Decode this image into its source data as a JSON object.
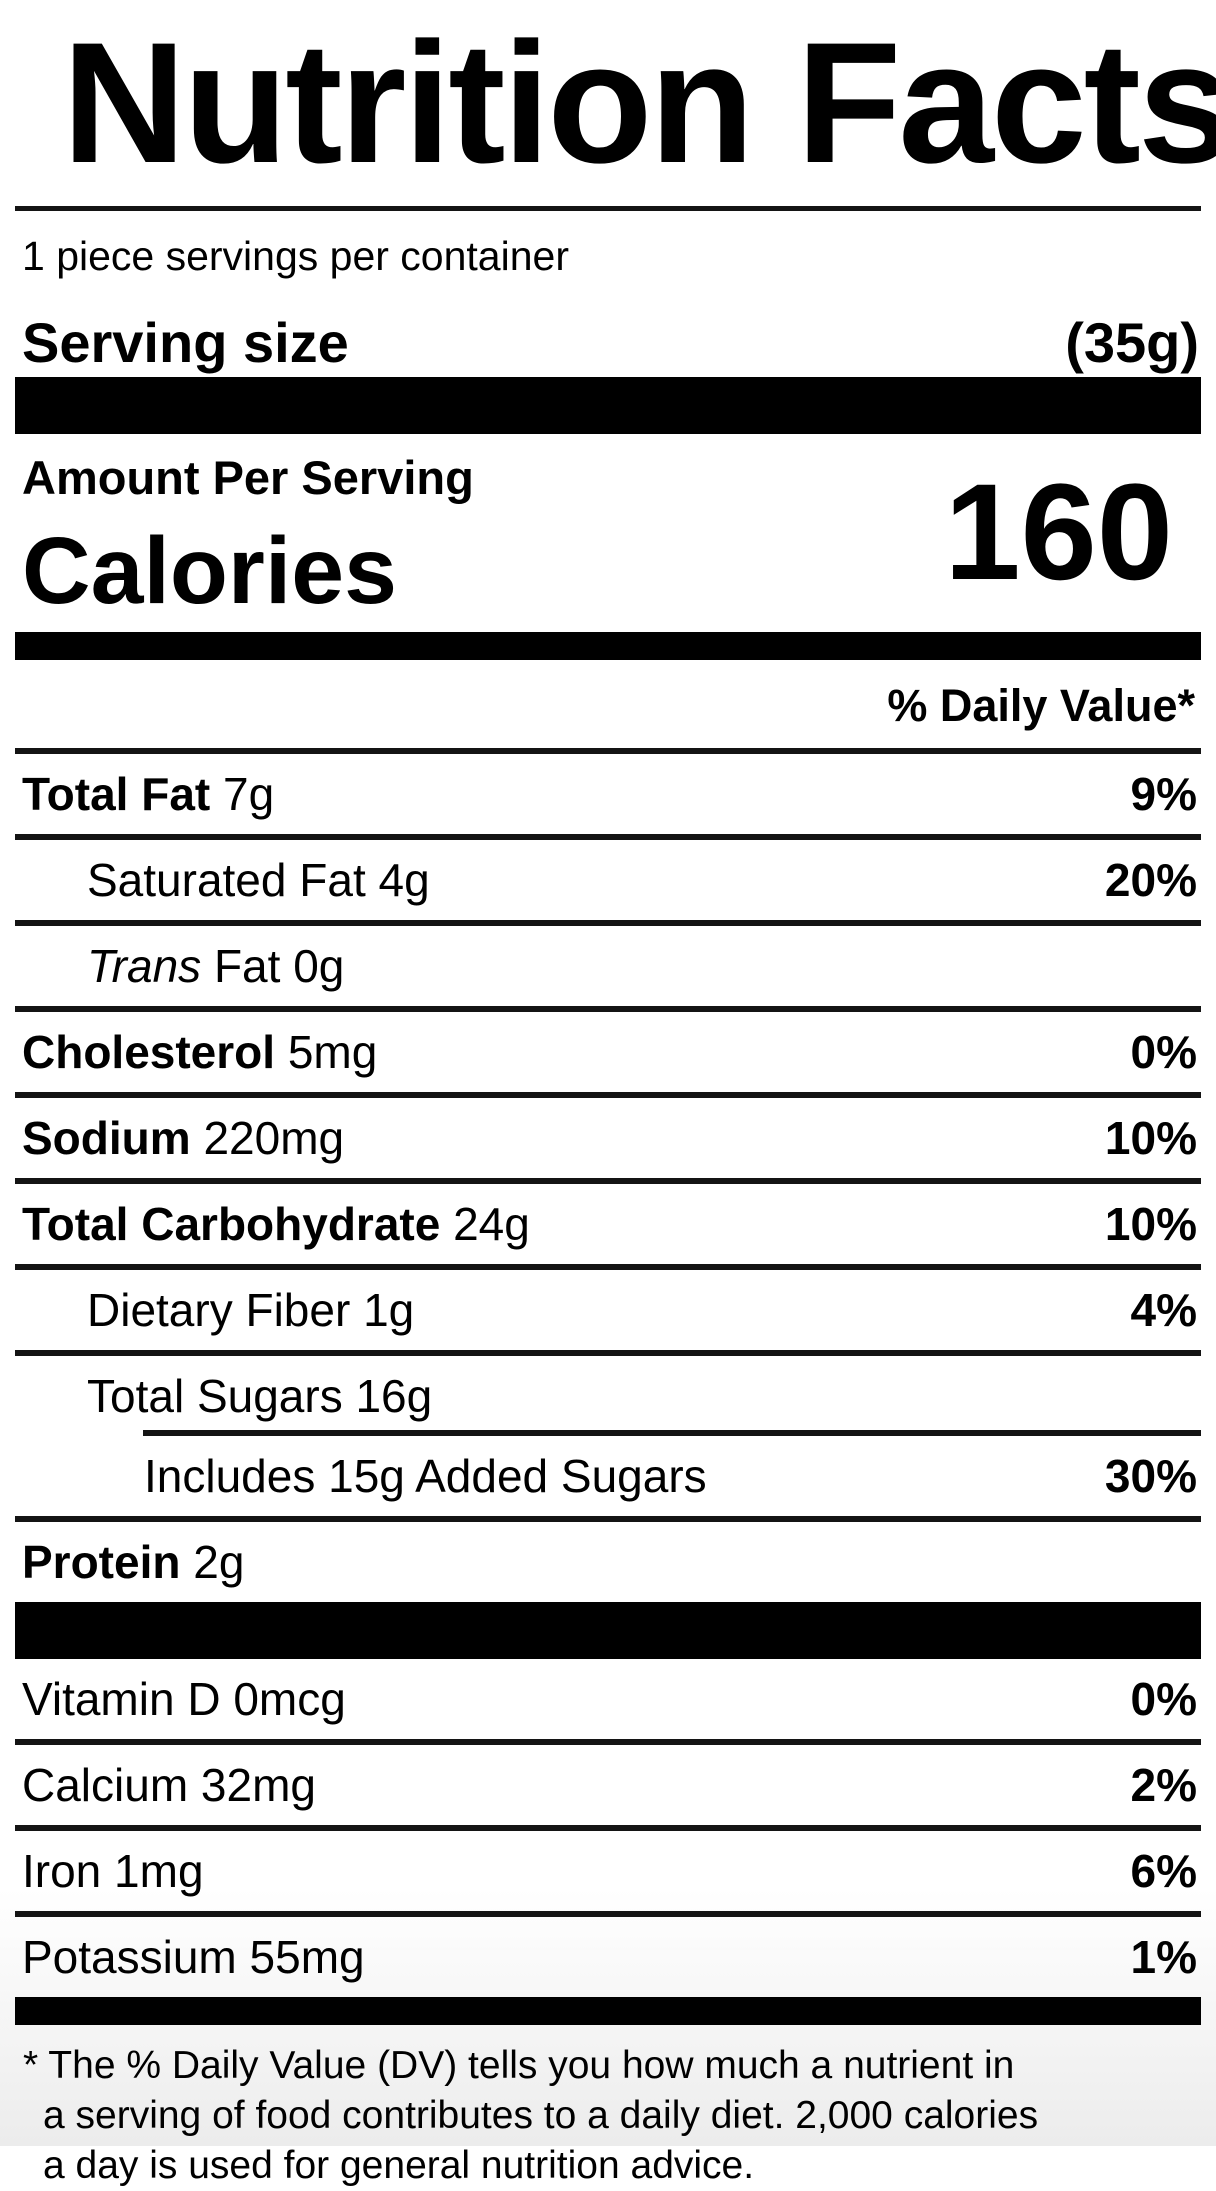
{
  "label": {
    "title": "Nutrition Facts",
    "servings_per_container": "1 piece servings per container",
    "serving_size_label": "Serving size",
    "serving_size_value": "(35g)",
    "amount_per_serving": "Amount Per Serving",
    "calories_label": "Calories",
    "calories_value": "160",
    "daily_value_header": "% Daily Value*",
    "rows": [
      {
        "parts": [
          {
            "text": "Total Fat",
            "style": "bold"
          },
          {
            "text": " 7g"
          }
        ],
        "dv": "9%",
        "indent": 0,
        "separator": "full"
      },
      {
        "parts": [
          {
            "text": "Saturated Fat 4g"
          }
        ],
        "dv": "20%",
        "indent": 1,
        "separator": "full"
      },
      {
        "parts": [
          {
            "text": "Trans",
            "style": "italic"
          },
          {
            "text": " Fat 0g"
          }
        ],
        "dv": "",
        "indent": 1,
        "separator": "full"
      },
      {
        "parts": [
          {
            "text": "Cholesterol",
            "style": "bold"
          },
          {
            "text": " 5mg"
          }
        ],
        "dv": "0%",
        "indent": 0,
        "separator": "full"
      },
      {
        "parts": [
          {
            "text": "Sodium",
            "style": "bold"
          },
          {
            "text": " 220mg"
          }
        ],
        "dv": "10%",
        "indent": 0,
        "separator": "full"
      },
      {
        "parts": [
          {
            "text": "Total Carbohydrate",
            "style": "bold"
          },
          {
            "text": " 24g"
          }
        ],
        "dv": "10%",
        "indent": 0,
        "separator": "full"
      },
      {
        "parts": [
          {
            "text": "Dietary Fiber 1g"
          }
        ],
        "dv": "4%",
        "indent": 1,
        "separator": "full"
      },
      {
        "parts": [
          {
            "text": "Total Sugars 16g"
          }
        ],
        "dv": "",
        "indent": 1,
        "separator": "partial"
      },
      {
        "parts": [
          {
            "text": "Includes 15g Added Sugars"
          }
        ],
        "dv": "30%",
        "indent": 2,
        "separator": "full"
      },
      {
        "parts": [
          {
            "text": "Protein",
            "style": "bold"
          },
          {
            "text": " 2g"
          }
        ],
        "dv": "",
        "indent": 0,
        "separator": "none"
      }
    ],
    "micronutrients": [
      {
        "parts": [
          {
            "text": "Vitamin D 0mcg"
          }
        ],
        "dv": "0%",
        "indent": 0,
        "separator": "full"
      },
      {
        "parts": [
          {
            "text": "Calcium 32mg"
          }
        ],
        "dv": "2%",
        "indent": 0,
        "separator": "full"
      },
      {
        "parts": [
          {
            "text": "Iron 1mg"
          }
        ],
        "dv": "6%",
        "indent": 0,
        "separator": "full"
      },
      {
        "parts": [
          {
            "text": "Potassium 55mg"
          }
        ],
        "dv": "1%",
        "indent": 0,
        "separator": "none"
      }
    ],
    "footnote_lines": [
      "* The % Daily Value (DV) tells you how much a nutrient in",
      "a serving of food contributes to a daily diet. 2,000 calories",
      "a day is used for general nutrition advice."
    ],
    "colors": {
      "ink": "#000000",
      "bar": "#000000",
      "rule": "#141414"
    }
  }
}
